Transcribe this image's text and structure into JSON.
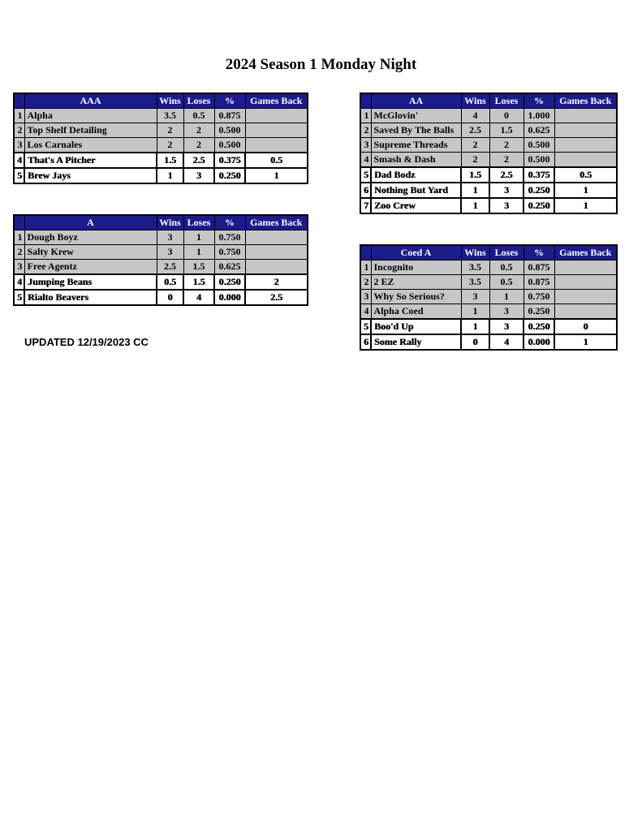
{
  "page": {
    "title": "2024 Season 1 Monday Night",
    "updated_note": "UPDATED 12/19/2023 CC"
  },
  "colors": {
    "header_bg": "#1b1b8c",
    "header_text": "#ffffff",
    "shaded_row_bg": "#c6c6c6",
    "unshaded_row_bg": "#ffffff",
    "border": "#000000"
  },
  "column_headers": {
    "wins": "Wins",
    "loses": "Loses",
    "pct": "%",
    "games_back": "Games Back"
  },
  "tables": [
    {
      "division": "AAA",
      "rows": [
        {
          "rank": "1",
          "team": "Alpha",
          "wins": "3.5",
          "loses": "0.5",
          "pct": "0.875",
          "games_back": "",
          "shaded": true
        },
        {
          "rank": "2",
          "team": "Top Shelf Detailing",
          "wins": "2",
          "loses": "2",
          "pct": "0.500",
          "games_back": "",
          "shaded": true
        },
        {
          "rank": "3",
          "team": "Los Carnales",
          "wins": "2",
          "loses": "2",
          "pct": "0.500",
          "games_back": "",
          "shaded": true
        },
        {
          "rank": "4",
          "team": "That's A Pitcher",
          "wins": "1.5",
          "loses": "2.5",
          "pct": "0.375",
          "games_back": "0.5",
          "shaded": false
        },
        {
          "rank": "5",
          "team": "Brew Jays",
          "wins": "1",
          "loses": "3",
          "pct": "0.250",
          "games_back": "1",
          "shaded": false
        }
      ]
    },
    {
      "division": "AA",
      "rows": [
        {
          "rank": "1",
          "team": "McGlovin'",
          "wins": "4",
          "loses": "0",
          "pct": "1.000",
          "games_back": "",
          "shaded": true
        },
        {
          "rank": "2",
          "team": "Saved By The Balls",
          "wins": "2.5",
          "loses": "1.5",
          "pct": "0.625",
          "games_back": "",
          "shaded": true
        },
        {
          "rank": "3",
          "team": "Supreme Threads",
          "wins": "2",
          "loses": "2",
          "pct": "0.500",
          "games_back": "",
          "shaded": true
        },
        {
          "rank": "4",
          "team": "Smash & Dash",
          "wins": "2",
          "loses": "2",
          "pct": "0.500",
          "games_back": "",
          "shaded": true
        },
        {
          "rank": "5",
          "team": "Dad Bodz",
          "wins": "1.5",
          "loses": "2.5",
          "pct": "0.375",
          "games_back": "0.5",
          "shaded": false
        },
        {
          "rank": "6",
          "team": "Nothing But Yard",
          "wins": "1",
          "loses": "3",
          "pct": "0.250",
          "games_back": "1",
          "shaded": false
        },
        {
          "rank": "7",
          "team": "Zoo Crew",
          "wins": "1",
          "loses": "3",
          "pct": "0.250",
          "games_back": "1",
          "shaded": false
        }
      ]
    },
    {
      "division": "A",
      "rows": [
        {
          "rank": "1",
          "team": "Dough Boyz",
          "wins": "3",
          "loses": "1",
          "pct": "0.750",
          "games_back": "",
          "shaded": true
        },
        {
          "rank": "2",
          "team": "Salty Krew",
          "wins": "3",
          "loses": "1",
          "pct": "0.750",
          "games_back": "",
          "shaded": true
        },
        {
          "rank": "3",
          "team": "Free Agentz",
          "wins": "2.5",
          "loses": "1.5",
          "pct": "0.625",
          "games_back": "",
          "shaded": true
        },
        {
          "rank": "4",
          "team": "Jumping Beans",
          "wins": "0.5",
          "loses": "1.5",
          "pct": "0.250",
          "games_back": "2",
          "shaded": false
        },
        {
          "rank": "5",
          "team": "Rialto Beavers",
          "wins": "0",
          "loses": "4",
          "pct": "0.000",
          "games_back": "2.5",
          "shaded": false
        }
      ]
    },
    {
      "division": "Coed A",
      "rows": [
        {
          "rank": "1",
          "team": "Incognito",
          "wins": "3.5",
          "loses": "0.5",
          "pct": "0.875",
          "games_back": "",
          "shaded": true
        },
        {
          "rank": "2",
          "team": "2 EZ",
          "wins": "3.5",
          "loses": "0.5",
          "pct": "0.875",
          "games_back": "",
          "shaded": true
        },
        {
          "rank": "3",
          "team": "Why So Serious?",
          "wins": "3",
          "loses": "1",
          "pct": "0.750",
          "games_back": "",
          "shaded": true
        },
        {
          "rank": "4",
          "team": "Alpha Coed",
          "wins": "1",
          "loses": "3",
          "pct": "0.250",
          "games_back": "",
          "shaded": true
        },
        {
          "rank": "5",
          "team": "Boo'd Up",
          "wins": "1",
          "loses": "3",
          "pct": "0.250",
          "games_back": "0",
          "shaded": false
        },
        {
          "rank": "6",
          "team": "Some Rally",
          "wins": "0",
          "loses": "4",
          "pct": "0.000",
          "games_back": "1",
          "shaded": false
        }
      ]
    }
  ]
}
